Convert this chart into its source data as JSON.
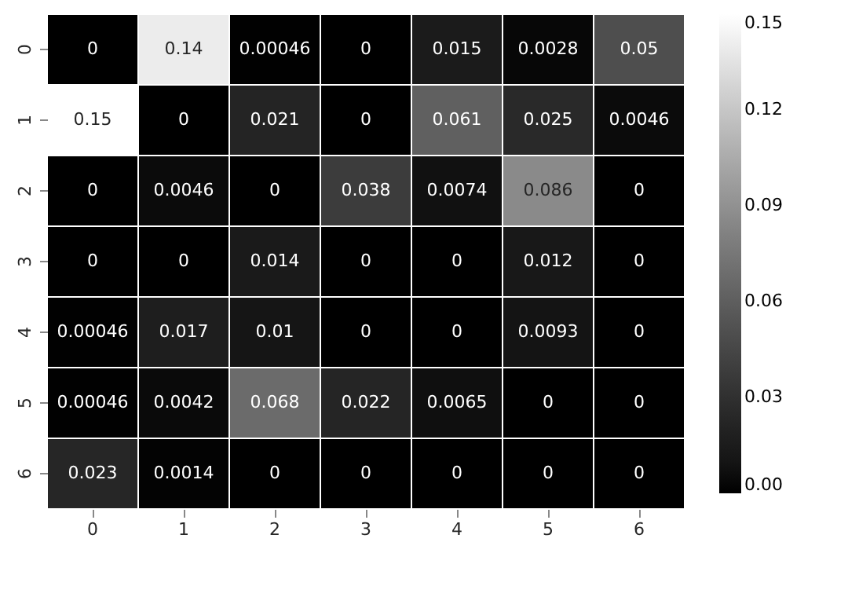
{
  "chart_data": {
    "type": "heatmap",
    "categories": [
      "0",
      "1",
      "2",
      "3",
      "4",
      "5",
      "6"
    ],
    "y_categories": [
      "0",
      "1",
      "2",
      "3",
      "4",
      "5",
      "6"
    ],
    "cells": [
      [
        0,
        0.14,
        0.00046,
        0,
        0.015,
        0.0028,
        0.05
      ],
      [
        0.15,
        0,
        0.021,
        0,
        0.061,
        0.025,
        0.0046
      ],
      [
        0,
        0.0046,
        0,
        0.038,
        0.0074,
        0.086,
        0
      ],
      [
        0,
        0,
        0.014,
        0,
        0,
        0.012,
        0
      ],
      [
        0.00046,
        0.017,
        0.01,
        0,
        0,
        0.0093,
        0
      ],
      [
        0.00046,
        0.0042,
        0.068,
        0.022,
        0.0065,
        0,
        0
      ],
      [
        0.023,
        0.0014,
        0,
        0,
        0,
        0,
        0
      ]
    ],
    "clim": [
      0,
      0.15
    ],
    "cticks": [
      {
        "value": 0,
        "label": "0.00"
      },
      {
        "value": 0.03,
        "label": "0.03"
      },
      {
        "value": 0.06,
        "label": "0.06"
      },
      {
        "value": 0.09,
        "label": "0.09"
      },
      {
        "value": 0.12,
        "label": "0.12"
      },
      {
        "value": 0.15,
        "label": "0.15"
      }
    ],
    "data_labels": true
  }
}
